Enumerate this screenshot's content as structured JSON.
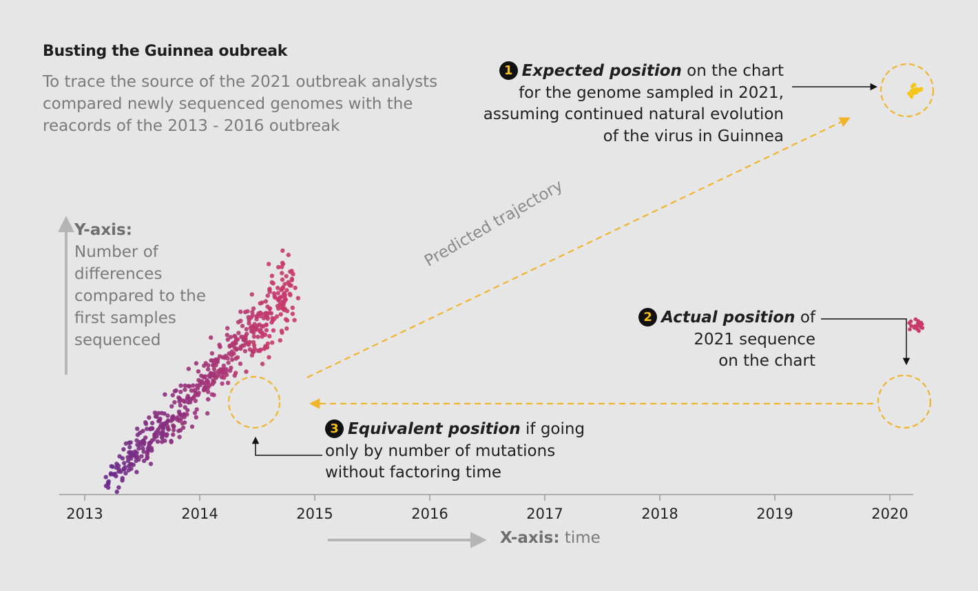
{
  "header": {
    "title": "Busting the Guinnea oubreak",
    "subtitle": "To trace the source of the 2021 outbreak analysts compared newly sequenced genomes with the reacords of the 2013 - 2016 outbreak"
  },
  "y_axis": {
    "title": "Y-axis:",
    "description": "Number of differences compared to the first samples sequenced"
  },
  "x_axis": {
    "title": "X-axis:",
    "description": "time"
  },
  "callouts": {
    "expected": {
      "number": "1",
      "emphasis": "Expected position",
      "text_after": " on the chart",
      "line2": "for the genome sampled in 2021,",
      "line3": "assuming continued natural evolution",
      "line4": "of the virus in Guinnea"
    },
    "actual": {
      "number": "2",
      "emphasis": "Actual position",
      "text_after": " of",
      "line2": "2021 sequence",
      "line3": "on the chart"
    },
    "equivalent": {
      "number": "3",
      "emphasis": "Equivalent position",
      "text_after": " if going",
      "line2": "only by number of mutations",
      "line3": "without factoring time"
    },
    "trajectory_label": "Predicted trajectory"
  },
  "chart_data": {
    "type": "scatter",
    "x_ticks": [
      "2013",
      "2014",
      "2015",
      "2016",
      "2017",
      "2018",
      "2019",
      "2020"
    ],
    "xlim": [
      2012.8,
      2020.2
    ],
    "y_relative_range": [
      0,
      1
    ],
    "colors": {
      "early_points": "#6a2a8a",
      "late_points": "#c83a6a",
      "expected_cluster": "#f5c518",
      "actual_cluster": "#c83a6a",
      "highlight_circle": "#f0b429",
      "trajectory": "#f0b429",
      "axis": "#9a9a9a"
    },
    "series": [
      {
        "name": "2013 - 2016 outbreak genomes",
        "description_note": "dense cloud rising from early 2013 to late 2014",
        "trend": {
          "x_start": 2013.2,
          "y_start": 0.02,
          "x_end": 2014.8,
          "y_end": 0.5
        }
      }
    ],
    "annotations": {
      "expected_position": {
        "x": 2020.1,
        "y": 1.0
      },
      "actual_position": {
        "x": 2020.1,
        "y": 0.41
      },
      "equivalent_position": {
        "x": 2014.5,
        "y": 0.4
      }
    }
  }
}
